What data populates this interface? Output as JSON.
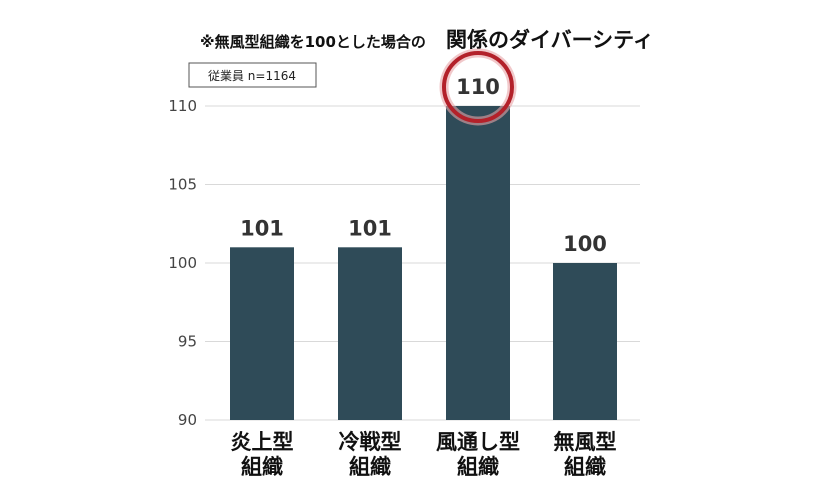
{
  "chart_data": {
    "type": "bar",
    "title_note": "※無風型組織を100とした場合の",
    "title": "関係のダイバーシティ",
    "sample_note": "従業員 n=1164",
    "categories": [
      [
        "炎上型",
        "組織"
      ],
      [
        "冷戦型",
        "組織"
      ],
      [
        "風通し型",
        "組織"
      ],
      [
        "無風型",
        "組織"
      ]
    ],
    "values": [
      101,
      101,
      110,
      100
    ],
    "value_labels": [
      "101",
      "101",
      "110",
      "100"
    ],
    "ylim": [
      90,
      110
    ],
    "yticks": [
      90,
      95,
      100,
      105,
      110
    ],
    "grid": true,
    "highlight_index": 2,
    "colors": {
      "bar": "#2f4b58",
      "grid": "#d9d9d9",
      "highlight_ring": "#b3212a",
      "highlight_glow": "#e7a3a6"
    }
  }
}
